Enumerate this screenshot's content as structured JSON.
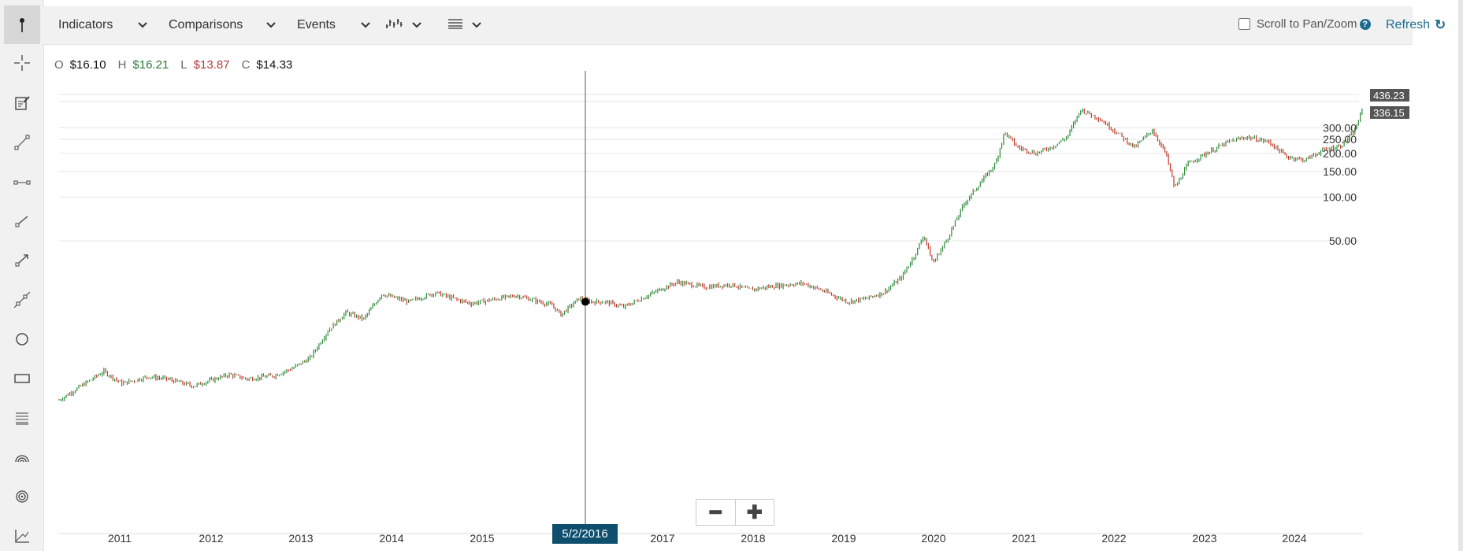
{
  "toolbar": {
    "menus": [
      {
        "label": "Indicators",
        "x": 74,
        "chev_x": 163
      },
      {
        "label": "Comparisons",
        "x": 214,
        "chev_x": 326
      },
      {
        "label": "Events",
        "x": 377,
        "chev_x": 446
      }
    ],
    "scroll_zoom_label": "Scroll to Pan/Zoom",
    "help_glyph": "?",
    "refresh_label": "Refresh",
    "refresh_icon": "↻"
  },
  "left_tools": [
    "cursor-pointer-icon",
    "crosshair-icon",
    "note-icon",
    "line-segment-icon",
    "horizontal-segment-icon",
    "ray-icon",
    "arrow-line-icon",
    "extended-line-icon",
    "circle-icon",
    "rectangle-icon",
    "fibonacci-icon",
    "arc-icon",
    "target-icon",
    "trend-angle-icon"
  ],
  "ohlc": {
    "o_label": "O",
    "o_value": "$16.10",
    "h_label": "H",
    "h_value": "$16.21",
    "l_label": "L",
    "l_value": "$13.87",
    "c_label": "C",
    "c_value": "$14.33"
  },
  "crosshair": {
    "date": "5/2/2016"
  },
  "price_tags": {
    "high": "436.23",
    "current": "336.15"
  },
  "colors": {
    "up": "#2e8b3a",
    "down": "#c0392b",
    "accent": "#1d6c8f",
    "tooltip": "#0e4f6e"
  },
  "chart_data": {
    "type": "line",
    "y_scale": "log",
    "title": "",
    "xlabel": "",
    "ylabel": "",
    "x_ticks": [
      "2011",
      "2012",
      "2013",
      "2014",
      "2015",
      "2017",
      "2018",
      "2019",
      "2020",
      "2021",
      "2022",
      "2023",
      "2024"
    ],
    "y_ticks": [
      "50.00",
      "100.00",
      "150.00",
      "200.00",
      "250.00",
      "300.00"
    ],
    "grid": true,
    "series": [
      {
        "points": [
          [
            2010.4,
            4.0
          ],
          [
            2010.6,
            4.8
          ],
          [
            2010.9,
            6.3
          ],
          [
            2011.1,
            5.2
          ],
          [
            2011.4,
            5.8
          ],
          [
            2011.6,
            5.6
          ],
          [
            2011.9,
            5.0
          ],
          [
            2012.1,
            5.5
          ],
          [
            2012.3,
            6.0
          ],
          [
            2012.5,
            5.6
          ],
          [
            2012.8,
            5.9
          ],
          [
            2013.0,
            6.6
          ],
          [
            2013.2,
            7.8
          ],
          [
            2013.4,
            12.0
          ],
          [
            2013.6,
            16.0
          ],
          [
            2013.8,
            14.5
          ],
          [
            2014.0,
            21.5
          ],
          [
            2014.3,
            19.0
          ],
          [
            2014.6,
            22.0
          ],
          [
            2014.8,
            20.0
          ],
          [
            2015.0,
            18.5
          ],
          [
            2015.3,
            20.0
          ],
          [
            2015.5,
            21.0
          ],
          [
            2015.7,
            19.5
          ],
          [
            2015.9,
            18.0
          ],
          [
            2016.0,
            15.5
          ],
          [
            2016.2,
            20.0
          ],
          [
            2016.35,
            19.0
          ],
          [
            2016.5,
            19.0
          ],
          [
            2016.7,
            17.5
          ],
          [
            2016.9,
            20.0
          ],
          [
            2017.1,
            23.0
          ],
          [
            2017.3,
            26.0
          ],
          [
            2017.6,
            24.0
          ],
          [
            2017.9,
            25.0
          ],
          [
            2018.1,
            23.0
          ],
          [
            2018.4,
            24.5
          ],
          [
            2018.7,
            25.5
          ],
          [
            2018.9,
            23.0
          ],
          [
            2019.2,
            19.0
          ],
          [
            2019.4,
            20.0
          ],
          [
            2019.6,
            22.0
          ],
          [
            2019.8,
            28.0
          ],
          [
            2019.95,
            40.0
          ],
          [
            2020.05,
            55.0
          ],
          [
            2020.15,
            35.0
          ],
          [
            2020.3,
            50.0
          ],
          [
            2020.5,
            90.0
          ],
          [
            2020.7,
            130.0
          ],
          [
            2020.85,
            170.0
          ],
          [
            2020.95,
            280.0
          ],
          [
            2021.1,
            220.0
          ],
          [
            2021.3,
            200.0
          ],
          [
            2021.5,
            225.0
          ],
          [
            2021.65,
            260.0
          ],
          [
            2021.8,
            400.0
          ],
          [
            2022.0,
            350.0
          ],
          [
            2022.2,
            280.0
          ],
          [
            2022.4,
            220.0
          ],
          [
            2022.6,
            290.0
          ],
          [
            2022.75,
            200.0
          ],
          [
            2022.85,
            115.0
          ],
          [
            2023.0,
            170.0
          ],
          [
            2023.2,
            200.0
          ],
          [
            2023.45,
            240.0
          ],
          [
            2023.65,
            260.0
          ],
          [
            2023.9,
            240.0
          ],
          [
            2024.1,
            190.0
          ],
          [
            2024.3,
            180.0
          ],
          [
            2024.5,
            210.0
          ],
          [
            2024.7,
            225.0
          ],
          [
            2024.85,
            280.0
          ],
          [
            2024.95,
            410.0
          ]
        ]
      }
    ]
  }
}
